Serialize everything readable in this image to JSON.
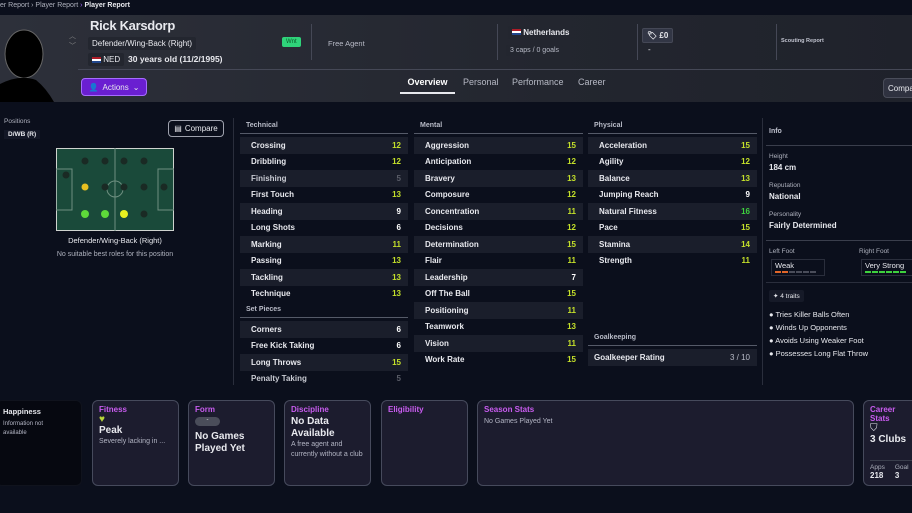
{
  "breadcrumb": [
    "er Report",
    "Player Report",
    "Player Report"
  ],
  "player": {
    "name": "Rick Karsdorp",
    "position": "Defender/Wing-Back (Right)",
    "nation_code": "NED",
    "age": "30 years old (11/2/1995)",
    "badge": "Wnt",
    "club": "Free Agent",
    "nation": "Netherlands",
    "caps": "3 caps / 0 goals",
    "value": "£0",
    "value_sub": "-",
    "scouting": "Scouting Report"
  },
  "actions_label": "Actions",
  "tabs": [
    "Overview",
    "Personal",
    "Performance",
    "Career"
  ],
  "compare_top": "Compa",
  "left": {
    "positions_label": "Positions",
    "position_chip": "D/WB (R)",
    "compare": "Compare",
    "role": "Defender/Wing-Back (Right)",
    "roles_note": "No suitable best roles for this position"
  },
  "technical": {
    "title": "Technical",
    "rows": [
      [
        "Crossing",
        "12"
      ],
      [
        "Dribbling",
        "12"
      ],
      [
        "Finishing",
        "5"
      ],
      [
        "First Touch",
        "13"
      ],
      [
        "Heading",
        "9"
      ],
      [
        "Long Shots",
        "6"
      ],
      [
        "Marking",
        "11"
      ],
      [
        "Passing",
        "13"
      ],
      [
        "Tackling",
        "13"
      ],
      [
        "Technique",
        "13"
      ]
    ]
  },
  "set_pieces": {
    "title": "Set Pieces",
    "rows": [
      [
        "Corners",
        "6"
      ],
      [
        "Free Kick Taking",
        "6"
      ],
      [
        "Long Throws",
        "15"
      ],
      [
        "Penalty Taking",
        "5"
      ]
    ]
  },
  "mental": {
    "title": "Mental",
    "rows": [
      [
        "Aggression",
        "15"
      ],
      [
        "Anticipation",
        "12"
      ],
      [
        "Bravery",
        "13"
      ],
      [
        "Composure",
        "12"
      ],
      [
        "Concentration",
        "11"
      ],
      [
        "Decisions",
        "12"
      ],
      [
        "Determination",
        "15"
      ],
      [
        "Flair",
        "11"
      ],
      [
        "Leadership",
        "7"
      ],
      [
        "Off The Ball",
        "15"
      ],
      [
        "Positioning",
        "11"
      ],
      [
        "Teamwork",
        "13"
      ],
      [
        "Vision",
        "11"
      ],
      [
        "Work Rate",
        "15"
      ]
    ]
  },
  "physical": {
    "title": "Physical",
    "rows": [
      [
        "Acceleration",
        "15"
      ],
      [
        "Agility",
        "12"
      ],
      [
        "Balance",
        "13"
      ],
      [
        "Jumping Reach",
        "9"
      ],
      [
        "Natural Fitness",
        "16"
      ],
      [
        "Pace",
        "15"
      ],
      [
        "Stamina",
        "14"
      ],
      [
        "Strength",
        "11"
      ]
    ]
  },
  "goalkeeping": {
    "title": "Goalkeeping",
    "label": "Goalkeeper Rating",
    "value": "3 / 10"
  },
  "info": {
    "title": "Info",
    "height_label": "Height",
    "height": "184 cm",
    "rep_label": "Reputation",
    "rep": "National",
    "pers_label": "Personality",
    "pers": "Fairly Determined",
    "left_foot_label": "Left Foot",
    "left_foot": "Weak",
    "left_foot_level": 2,
    "right_foot_label": "Right Foot",
    "right_foot": "Very Strong",
    "right_foot_level": 6,
    "traits_label": "4 traits",
    "traits": [
      "Tries Killer Balls Often",
      "Winds Up Opponents",
      "Avoids Using Weaker Foot",
      "Possesses Long Flat Throw"
    ]
  },
  "cards": {
    "happiness": {
      "title": "Happiness",
      "text": "Information not available"
    },
    "fitness": {
      "title": "Fitness",
      "value": "Peak",
      "sub": "Severely lacking in ..."
    },
    "form": {
      "title": "Form",
      "chip": "-",
      "value": "No Games Played Yet"
    },
    "discipline": {
      "title": "Discipline",
      "value": "No Data Available",
      "sub": "A free agent and currently without a club"
    },
    "eligibility": {
      "title": "Eligibility"
    },
    "season": {
      "title": "Season Stats",
      "text": "No Games Played Yet"
    },
    "career": {
      "title": "Career Stats",
      "clubs": "3 Clubs",
      "apps_label": "Apps",
      "apps": "218",
      "goals_label": "Goal",
      "goals": "3"
    }
  },
  "colors": {
    "accent": "#6a1fd1",
    "card_title": "#c95cf0",
    "good": "#c4e02a",
    "great": "#3ed13e",
    "weak": "#e0662a"
  }
}
